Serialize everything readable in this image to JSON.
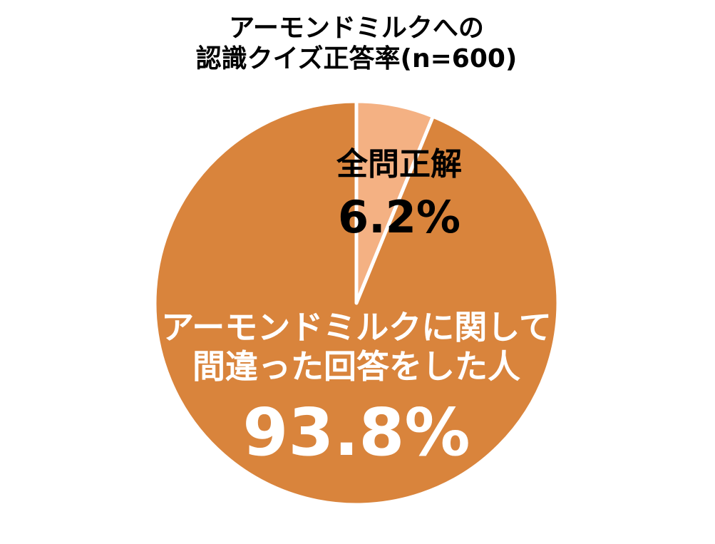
{
  "chart_data": {
    "type": "pie",
    "title": "アーモンドミルクへの\n認識クイズ正答率(n=600)",
    "categories": [
      "全問正解",
      "アーモンドミルクに関して\n間違った回答をした人"
    ],
    "values": [
      6.2,
      93.8
    ],
    "value_labels": [
      "6.2%",
      "93.8%"
    ],
    "colors": [
      "#F4B183",
      "#D9843C"
    ]
  }
}
